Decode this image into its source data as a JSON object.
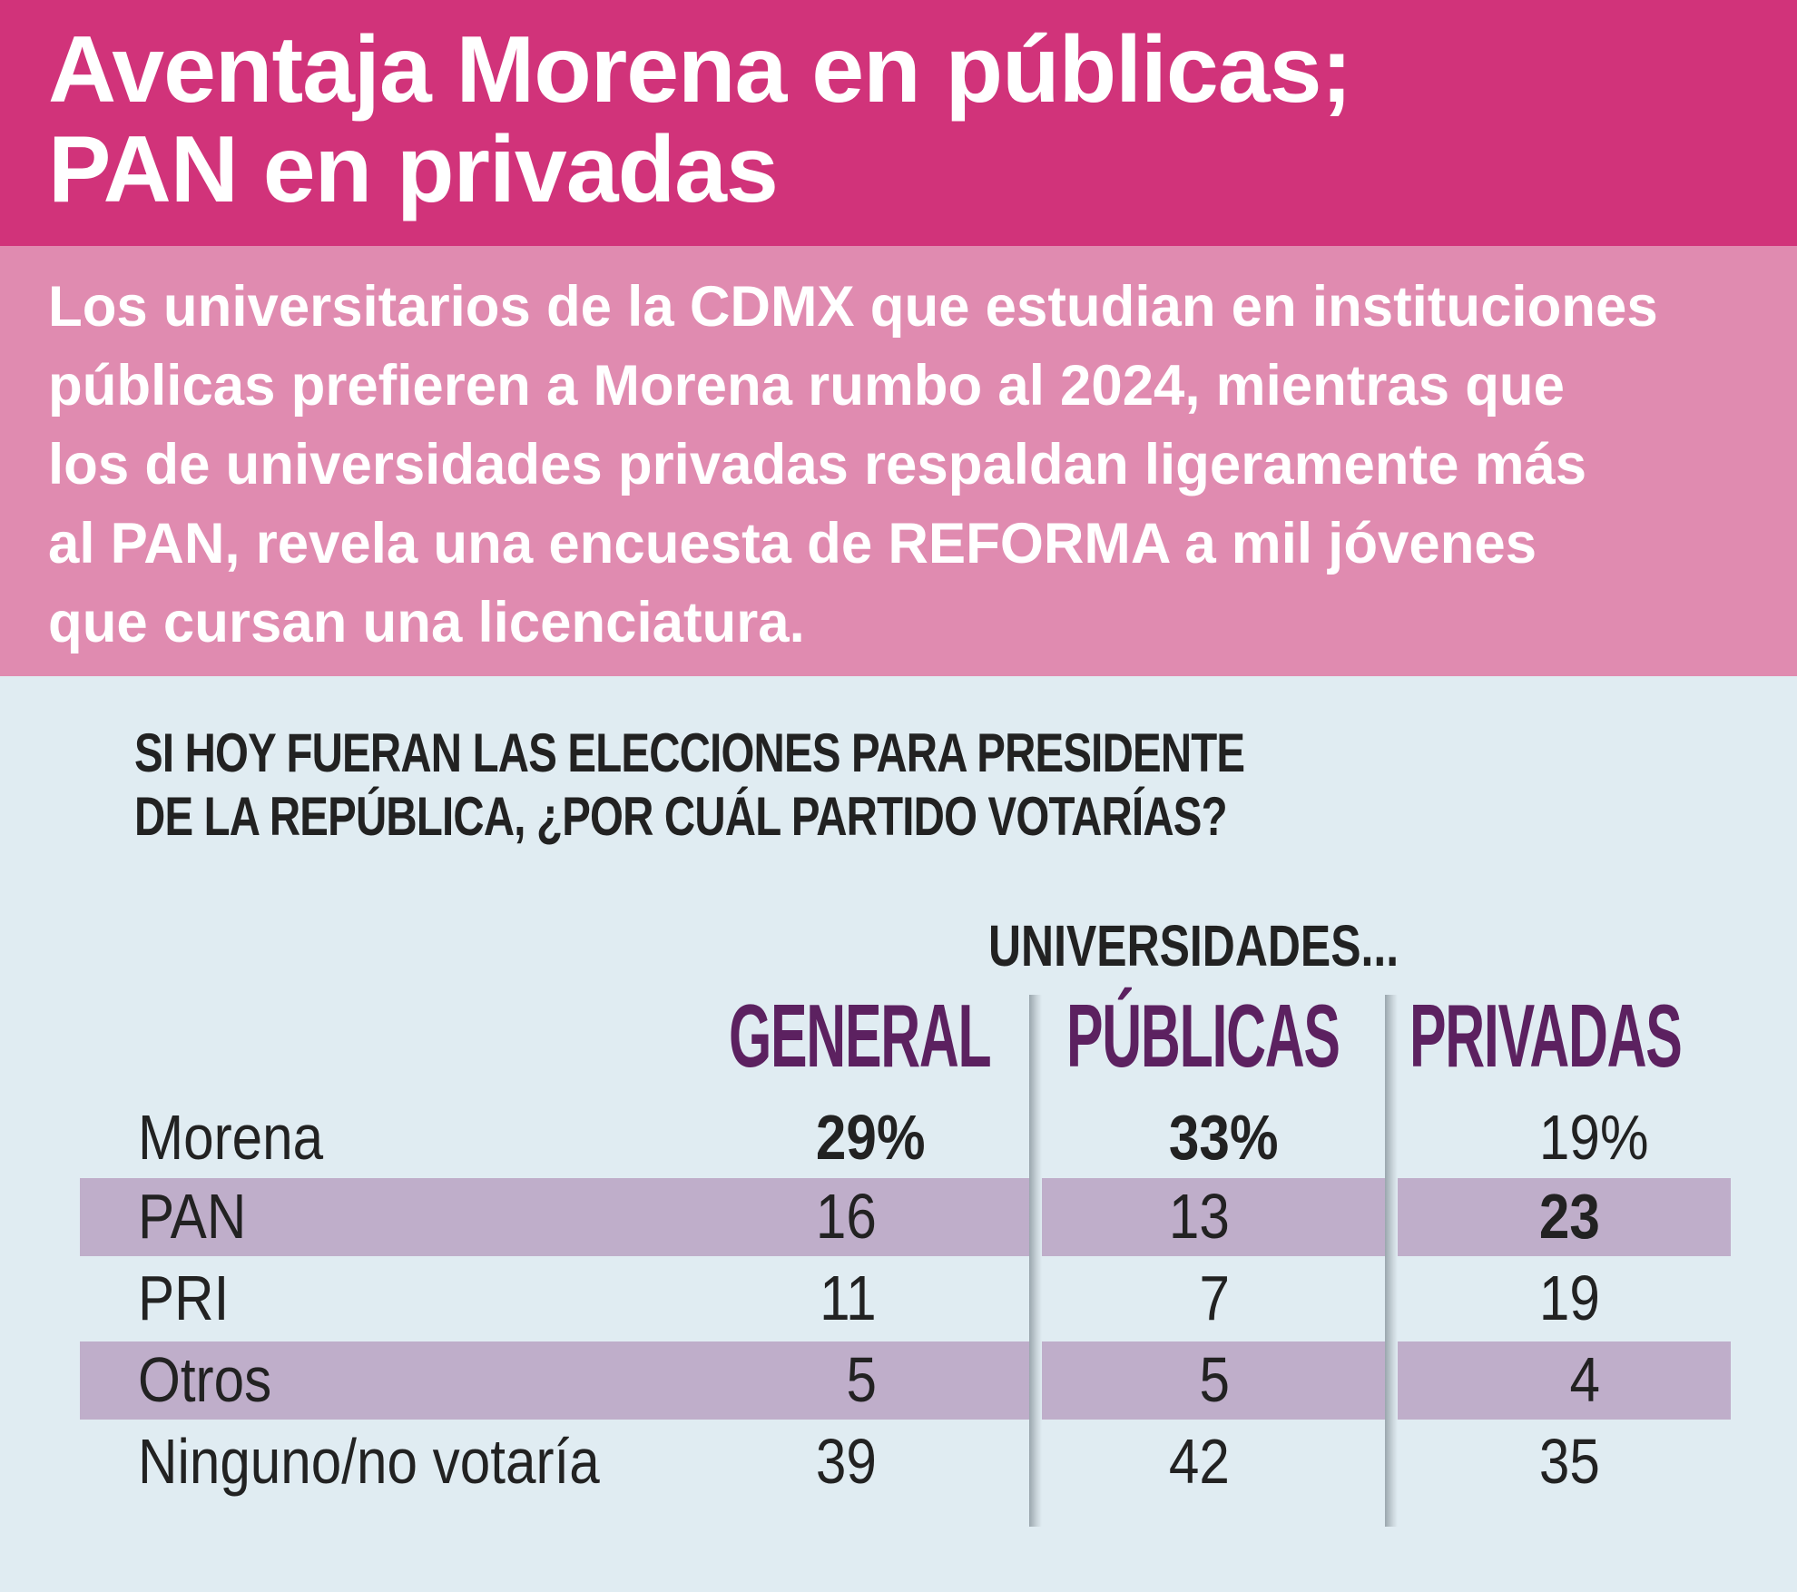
{
  "header": {
    "title_lines": [
      "Aventaja Morena en públicas;",
      "PAN en privadas"
    ],
    "subtitle_lines": [
      "Los universitarios de la CDMX que estudian en instituciones",
      "públicas prefieren a Morena  rumbo al 2024, mientras que",
      "los de universidades privadas respaldan ligeramente más",
      "al PAN, revela una encuesta de REFORMA a mil jóvenes",
      "que cursan una licenciatura."
    ]
  },
  "colors": {
    "title_band": "#d1337a",
    "subtitle_band": "#e08bb0",
    "background": "#e0ecf2",
    "column_header": "#5c2160",
    "row_band": "#bfaeca"
  },
  "question_lines": [
    "SI HOY FUERAN LAS ELECCIONES PARA PRESIDENTE",
    "DE LA REPÚBLICA, ¿POR CUÁL PARTIDO VOTARÍAS?"
  ],
  "table": {
    "group_header": "UNIVERSIDADES...",
    "columns": [
      "GENERAL",
      "PÚBLICAS",
      "PRIVADAS"
    ],
    "rows": [
      {
        "label": "Morena",
        "values": [
          "29",
          "33",
          "19"
        ],
        "suffix": "%",
        "bold": [
          true,
          true,
          false
        ]
      },
      {
        "label": "PAN",
        "values": [
          "16",
          "13",
          "23"
        ],
        "bold": [
          false,
          false,
          true
        ]
      },
      {
        "label": "PRI",
        "values": [
          "11",
          "7",
          "19"
        ],
        "bold": [
          false,
          false,
          false
        ]
      },
      {
        "label": "Otros",
        "values": [
          "5",
          "5",
          "4"
        ],
        "bold": [
          false,
          false,
          false
        ]
      },
      {
        "label": "Ninguno/no votaría",
        "values": [
          "39",
          "42",
          "35"
        ],
        "bold": [
          false,
          false,
          false
        ]
      }
    ]
  }
}
